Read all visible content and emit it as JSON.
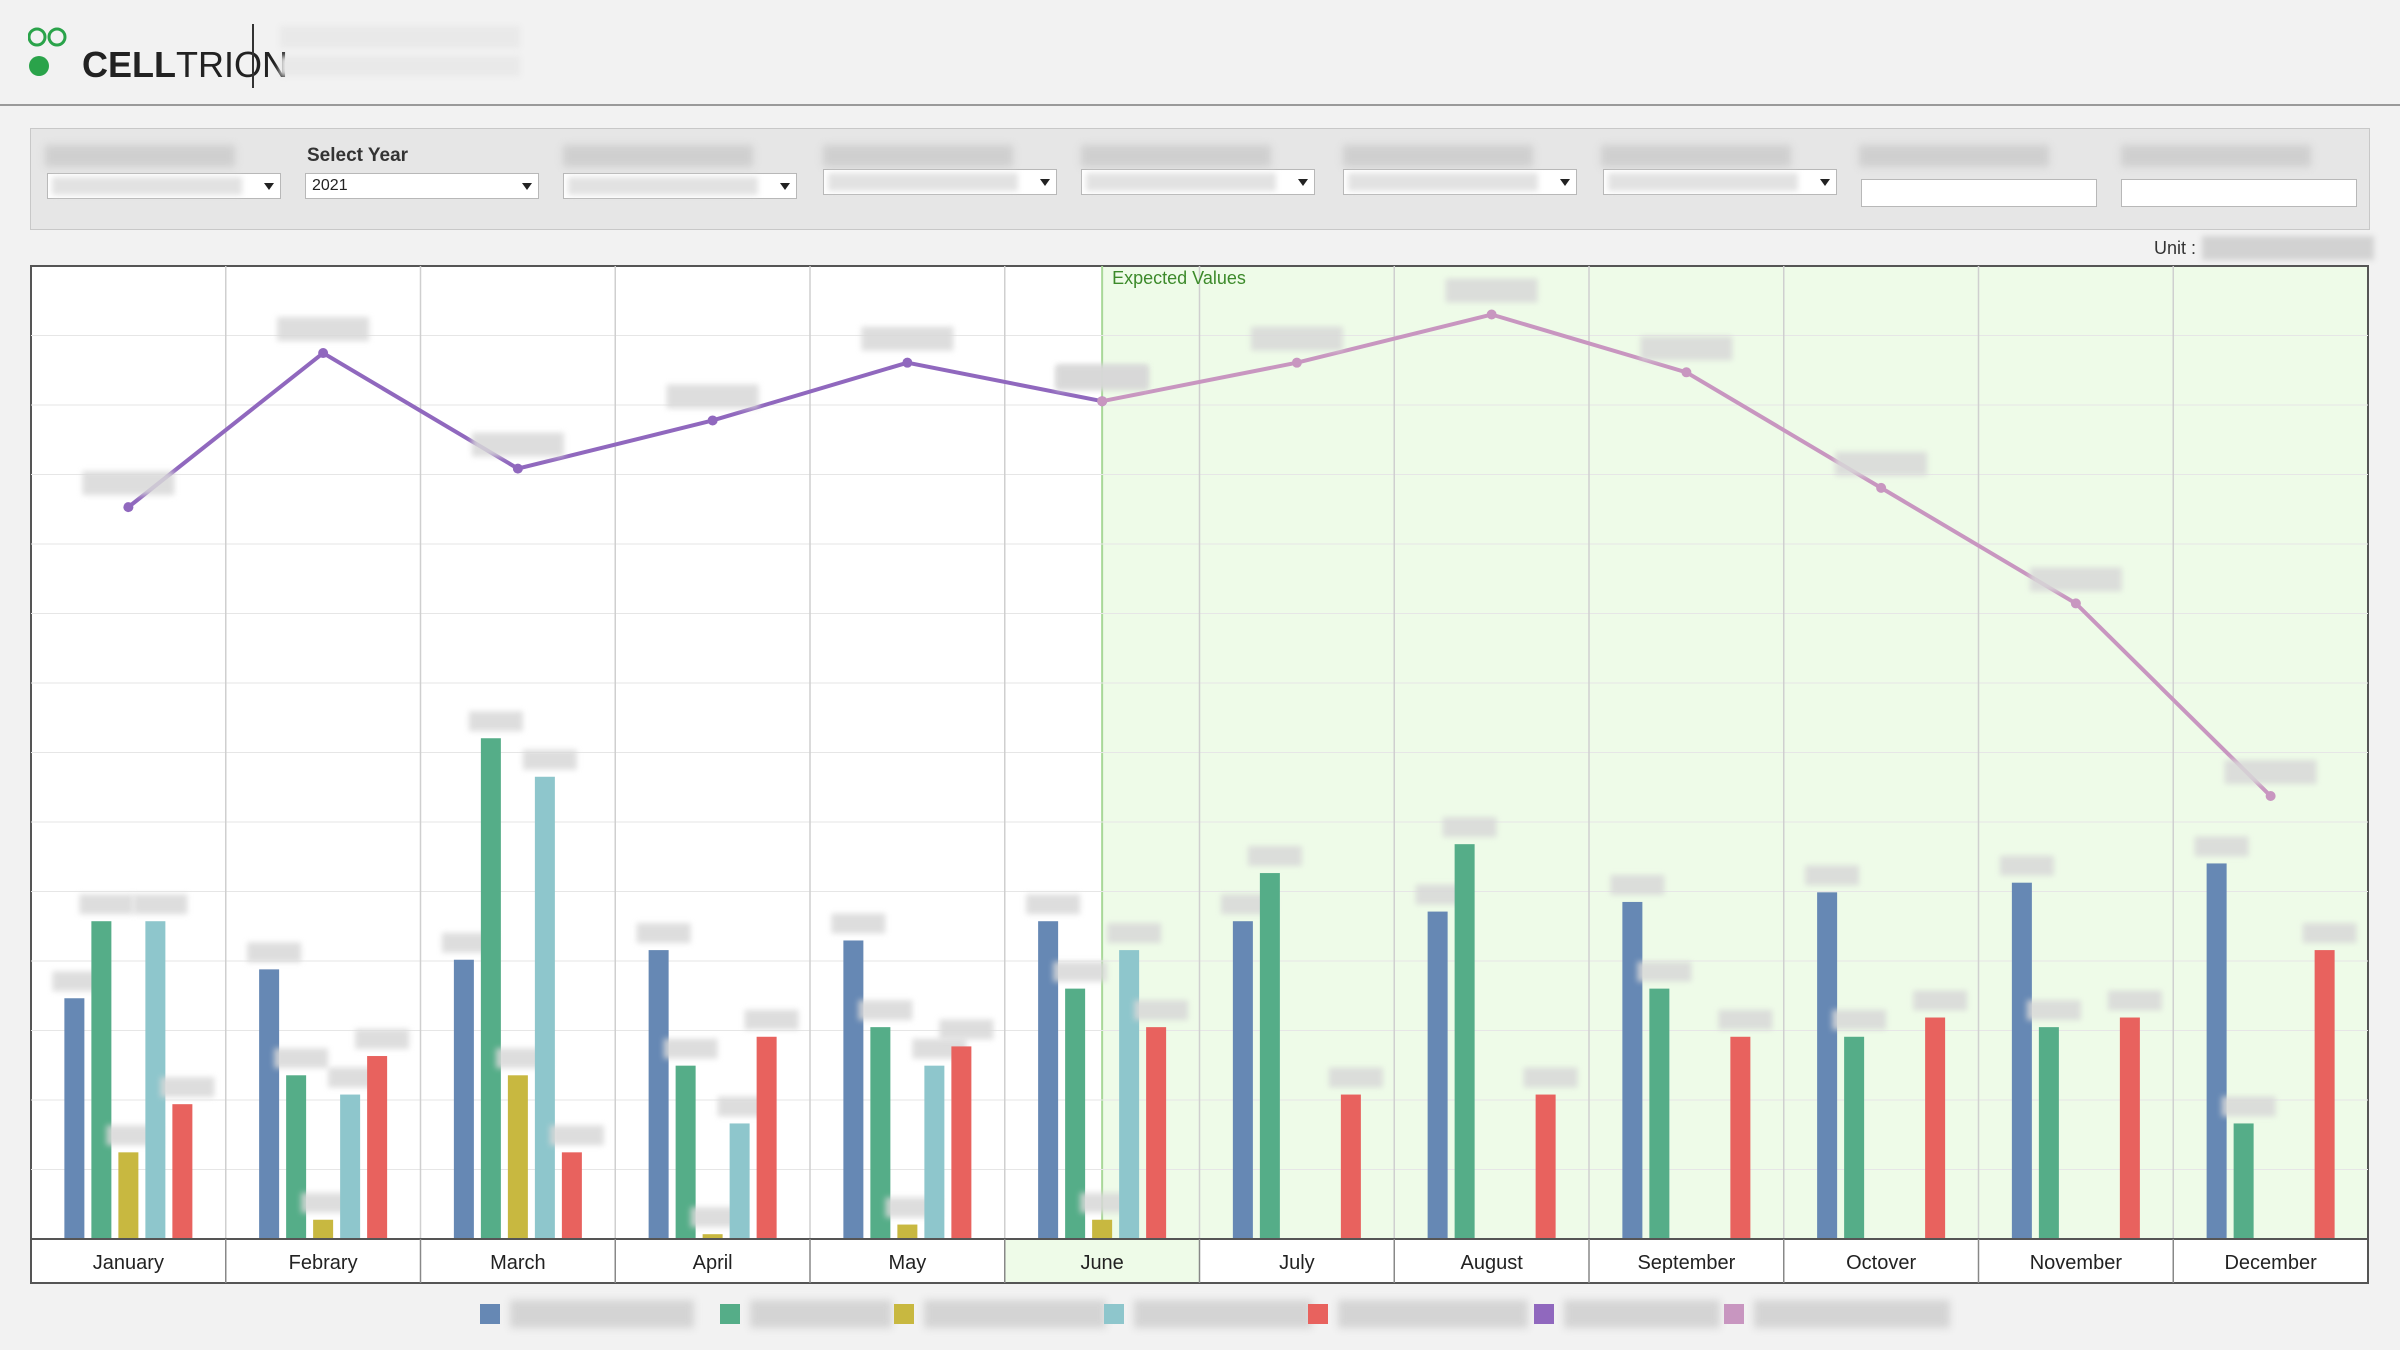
{
  "header": {
    "logo_text": "CELLTRION",
    "logo_bold": "CELL",
    "logo_light": "TRION"
  },
  "filters": {
    "year_label": "Select Year",
    "year_value": "2021"
  },
  "unit_label": "Unit :",
  "colors": {
    "series_blue": "#6688b4",
    "series_green": "#55ad88",
    "series_yellow": "#c8b840",
    "series_teal": "#8ec6cc",
    "series_red": "#e8625e",
    "line_actual": "#9068be",
    "line_expected": "#c896c0",
    "expected_region": "#eefbe8",
    "expected_text": "#3c8a2a"
  },
  "chart_data": {
    "type": "bar",
    "categories": [
      "January",
      "Febrary",
      "March",
      "April",
      "May",
      "June",
      "July",
      "August",
      "September",
      "Octover",
      "November",
      "December"
    ],
    "annotation": "Expected Values",
    "expected_from_index": 5,
    "ylim": [
      0,
      100
    ],
    "grid": true,
    "series": [
      {
        "type": "bar",
        "color": "#6688b4",
        "values": [
          25,
          28,
          29,
          30,
          31,
          33,
          33,
          34,
          35,
          36,
          37,
          39
        ]
      },
      {
        "type": "bar",
        "color": "#55ad88",
        "values": [
          33,
          17,
          52,
          18,
          22,
          26,
          38,
          41,
          26,
          21,
          22,
          12
        ]
      },
      {
        "type": "bar",
        "color": "#c8b840",
        "values": [
          9,
          2,
          17,
          0.5,
          1.5,
          2,
          null,
          null,
          null,
          null,
          null,
          null
        ]
      },
      {
        "type": "bar",
        "color": "#8ec6cc",
        "values": [
          33,
          15,
          48,
          12,
          18,
          30,
          null,
          null,
          null,
          null,
          null,
          null
        ]
      },
      {
        "type": "bar",
        "color": "#e8625e",
        "values": [
          14,
          19,
          9,
          21,
          20,
          22,
          15,
          15,
          21,
          23,
          23,
          30
        ]
      },
      {
        "type": "line",
        "color": "#9068be",
        "values": [
          76,
          92,
          80,
          85,
          91,
          87,
          null,
          null,
          null,
          null,
          null,
          null
        ]
      },
      {
        "type": "line",
        "color": "#c896c0",
        "values": [
          null,
          null,
          null,
          null,
          null,
          87,
          91,
          96,
          90,
          78,
          66,
          46
        ]
      }
    ]
  }
}
